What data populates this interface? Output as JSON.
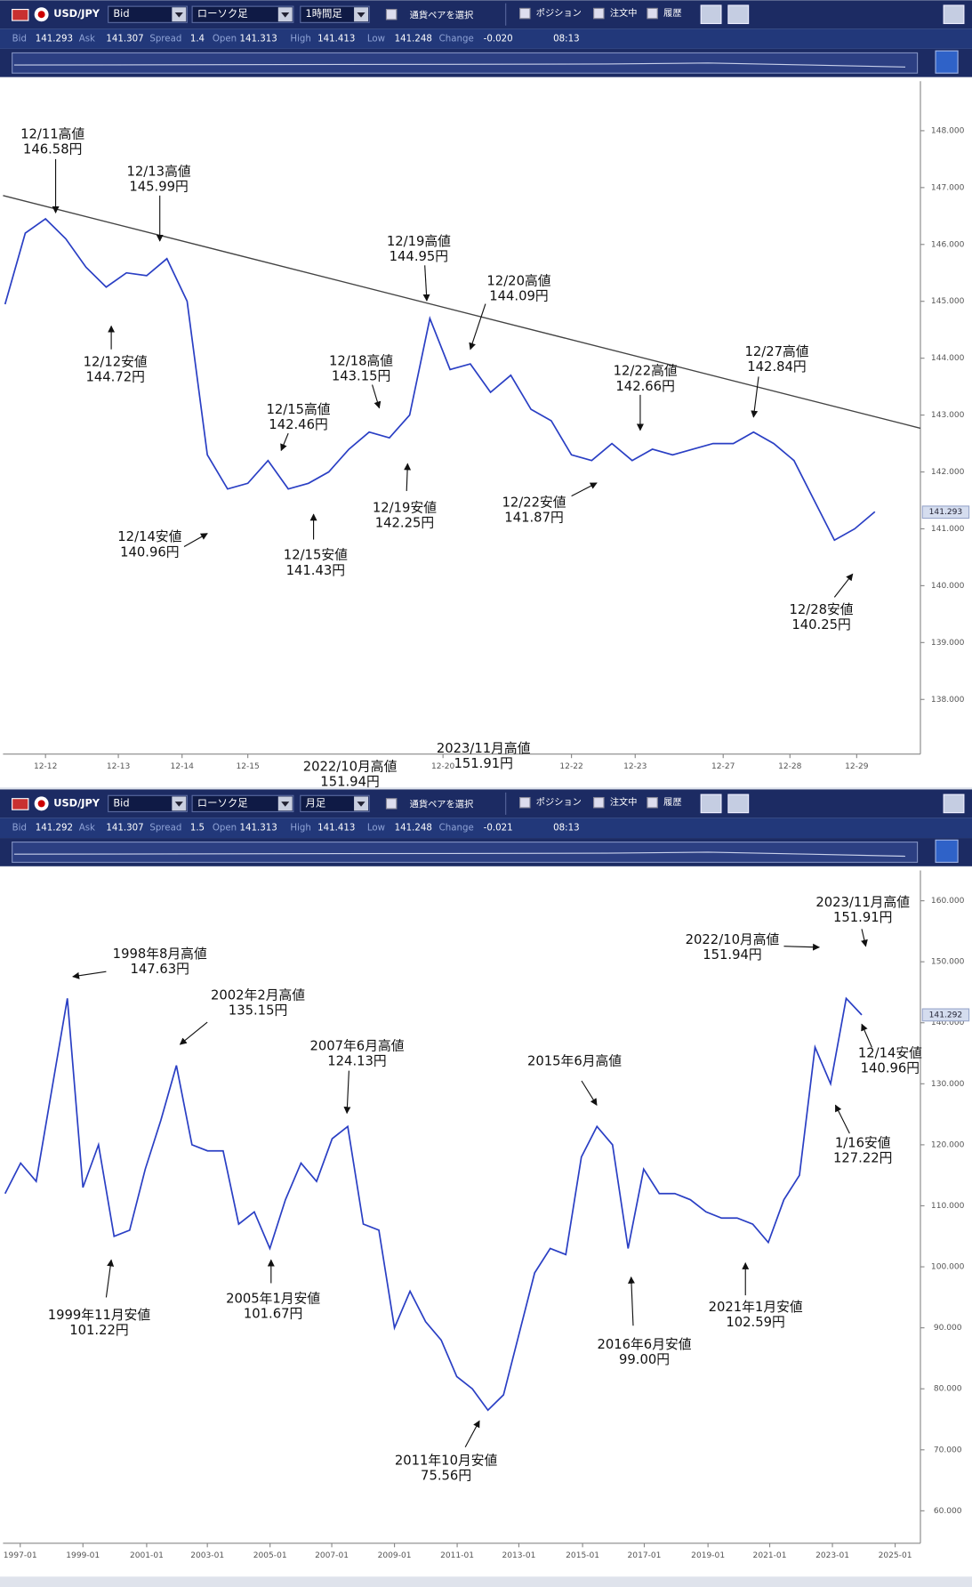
{
  "panels": [
    {
      "toolbar": {
        "pair": "USD/JPY",
        "price_type": "Bid",
        "chart_type": "ローソク足",
        "period": "1時間足",
        "pair_select": "通貨ペアを選択",
        "toggles": [
          "ポジション",
          "注文中",
          "履歴"
        ]
      },
      "quote": [
        {
          "label": "Bid",
          "value": "141.293"
        },
        {
          "label": "Ask",
          "value": "141.307"
        },
        {
          "label": "Spread",
          "value": "1.4"
        },
        {
          "label": "Open",
          "value": "141.313"
        },
        {
          "label": "High",
          "value": "141.413"
        },
        {
          "label": "Low",
          "value": "141.248"
        },
        {
          "label": "Change",
          "value": "-0.020"
        }
      ],
      "time": "08:13",
      "chart": {
        "type": "line",
        "ylim": [
          137.04,
          148.87
        ],
        "yticks": [
          {
            "value": 148,
            "label": "148.000"
          },
          {
            "value": 147,
            "label": "147.000"
          },
          {
            "value": 146,
            "label": "146.000"
          },
          {
            "value": 145,
            "label": "145.000"
          },
          {
            "value": 144,
            "label": "144.000"
          },
          {
            "value": 143,
            "label": "143.000"
          },
          {
            "value": 142,
            "label": "142.000"
          },
          {
            "value": 141,
            "label": "141.000"
          },
          {
            "value": 140,
            "label": "140.000"
          },
          {
            "value": 139,
            "label": "139.000"
          },
          {
            "value": 138,
            "label": "138.000"
          }
        ],
        "xlabels": [
          "12-12",
          "12-13",
          "12-14",
          "12-15",
          "12-20",
          "12-22",
          "12-23",
          "12-27",
          "12-28",
          "12-29"
        ],
        "last_price": 141.293,
        "color": "#2a3fc4",
        "values": [
          144.95,
          146.2,
          146.45,
          146.1,
          145.6,
          145.25,
          145.5,
          145.45,
          145.75,
          145.0,
          142.3,
          141.7,
          141.8,
          142.2,
          141.7,
          141.8,
          142.0,
          142.4,
          142.7,
          142.6,
          143.0,
          144.7,
          143.8,
          143.9,
          143.4,
          143.7,
          143.1,
          142.9,
          142.3,
          142.2,
          142.5,
          142.2,
          142.4,
          142.3,
          142.4,
          142.5,
          142.5,
          142.7,
          142.5,
          142.2,
          141.5,
          140.8,
          141.0,
          141.3
        ],
        "annotations": [
          {
            "label": "12/11高値",
            "price": "146.58円"
          },
          {
            "label": "12/13高値",
            "price": "145.99円"
          },
          {
            "label": "12/12安値",
            "price": "144.72円"
          },
          {
            "label": "12/14安値",
            "price": "140.96円"
          },
          {
            "label": "12/15高値",
            "price": "142.46円"
          },
          {
            "label": "12/15安値",
            "price": "141.43円"
          },
          {
            "label": "12/18高値",
            "price": "143.15円"
          },
          {
            "label": "12/19安値",
            "price": "142.25円"
          },
          {
            "label": "12/19高値",
            "price": "144.95円"
          },
          {
            "label": "12/20高値",
            "price": "144.09円"
          },
          {
            "label": "12/22高値",
            "price": "142.66円"
          },
          {
            "label": "12/22安値",
            "price": "141.87円"
          },
          {
            "label": "12/27高値",
            "price": "142.84円"
          },
          {
            "label": "12/28安値",
            "price": "140.25円"
          },
          {
            "label": "2023/11月高値",
            "price": "151.91円"
          },
          {
            "label": "2022/10月高値",
            "price": "151.94円"
          }
        ]
      }
    },
    {
      "toolbar": {
        "pair": "USD/JPY",
        "price_type": "Bid",
        "chart_type": "ローソク足",
        "period": "月足",
        "pair_select": "通貨ペアを選択",
        "toggles": [
          "ポジション",
          "注文中",
          "履歴"
        ]
      },
      "quote": [
        {
          "label": "Bid",
          "value": "141.292"
        },
        {
          "label": "Ask",
          "value": "141.307"
        },
        {
          "label": "Spread",
          "value": "1.5"
        },
        {
          "label": "Open",
          "value": "141.313"
        },
        {
          "label": "High",
          "value": "141.413"
        },
        {
          "label": "Low",
          "value": "141.248"
        },
        {
          "label": "Change",
          "value": "-0.021"
        }
      ],
      "time": "08:13",
      "chart": {
        "type": "line",
        "ylim": [
          54.69,
          164.98
        ],
        "yticks": [
          {
            "value": 160,
            "label": "160.000"
          },
          {
            "value": 150,
            "label": "150.000"
          },
          {
            "value": 140,
            "label": "140.000"
          },
          {
            "value": 130,
            "label": "130.000"
          },
          {
            "value": 120,
            "label": "120.000"
          },
          {
            "value": 110,
            "label": "110.000"
          },
          {
            "value": 100,
            "label": "100.000"
          },
          {
            "value": 90,
            "label": "90.000"
          },
          {
            "value": 80,
            "label": "80.000"
          },
          {
            "value": 70,
            "label": "70.000"
          },
          {
            "value": 60,
            "label": "60.000"
          }
        ],
        "xlabels": [
          "1997-01",
          "1999-01",
          "2001-01",
          "2003-01",
          "2005-01",
          "2007-01",
          "2009-01",
          "2011-01",
          "2013-01",
          "2015-01",
          "2017-01",
          "2019-01",
          "2021-01",
          "2023-01",
          "2025-01"
        ],
        "last_price": 141.292,
        "color": "#2a3fc4",
        "values": [
          112,
          117,
          114,
          129,
          144,
          113,
          120,
          105,
          106,
          116,
          124,
          133,
          120,
          119,
          119,
          107,
          109,
          103,
          111,
          117,
          114,
          121,
          123,
          107,
          106,
          90,
          96,
          91,
          88,
          82,
          80,
          76.5,
          79,
          89,
          99,
          103,
          102,
          118,
          123,
          120,
          103,
          116,
          112,
          112,
          111,
          109,
          108,
          108,
          107,
          104,
          111,
          115,
          136,
          130,
          144,
          141.3
        ],
        "annotations": [
          {
            "label": "1998年8月高値",
            "price": "147.63円"
          },
          {
            "label": "2002年2月高値",
            "price": "135.15円"
          },
          {
            "label": "2007年6月高値",
            "price": "124.13円"
          },
          {
            "label": "2015年6月高値"
          },
          {
            "label": "2022/10月高値",
            "price": "151.94円"
          },
          {
            "label": "2023/11月高値",
            "price": "151.91円"
          },
          {
            "label": "12/14安値",
            "price": "140.96円"
          },
          {
            "label": "1/16安値",
            "price": "127.22円"
          },
          {
            "label": "1999年11月安値",
            "price": "101.22円"
          },
          {
            "label": "2005年1月安値",
            "price": "101.67円"
          },
          {
            "label": "2011年10月安値",
            "price": "75.56円"
          },
          {
            "label": "2016年6月安値",
            "price": "99.00円"
          },
          {
            "label": "2021年1月安値",
            "price": "102.59円"
          }
        ]
      }
    }
  ]
}
